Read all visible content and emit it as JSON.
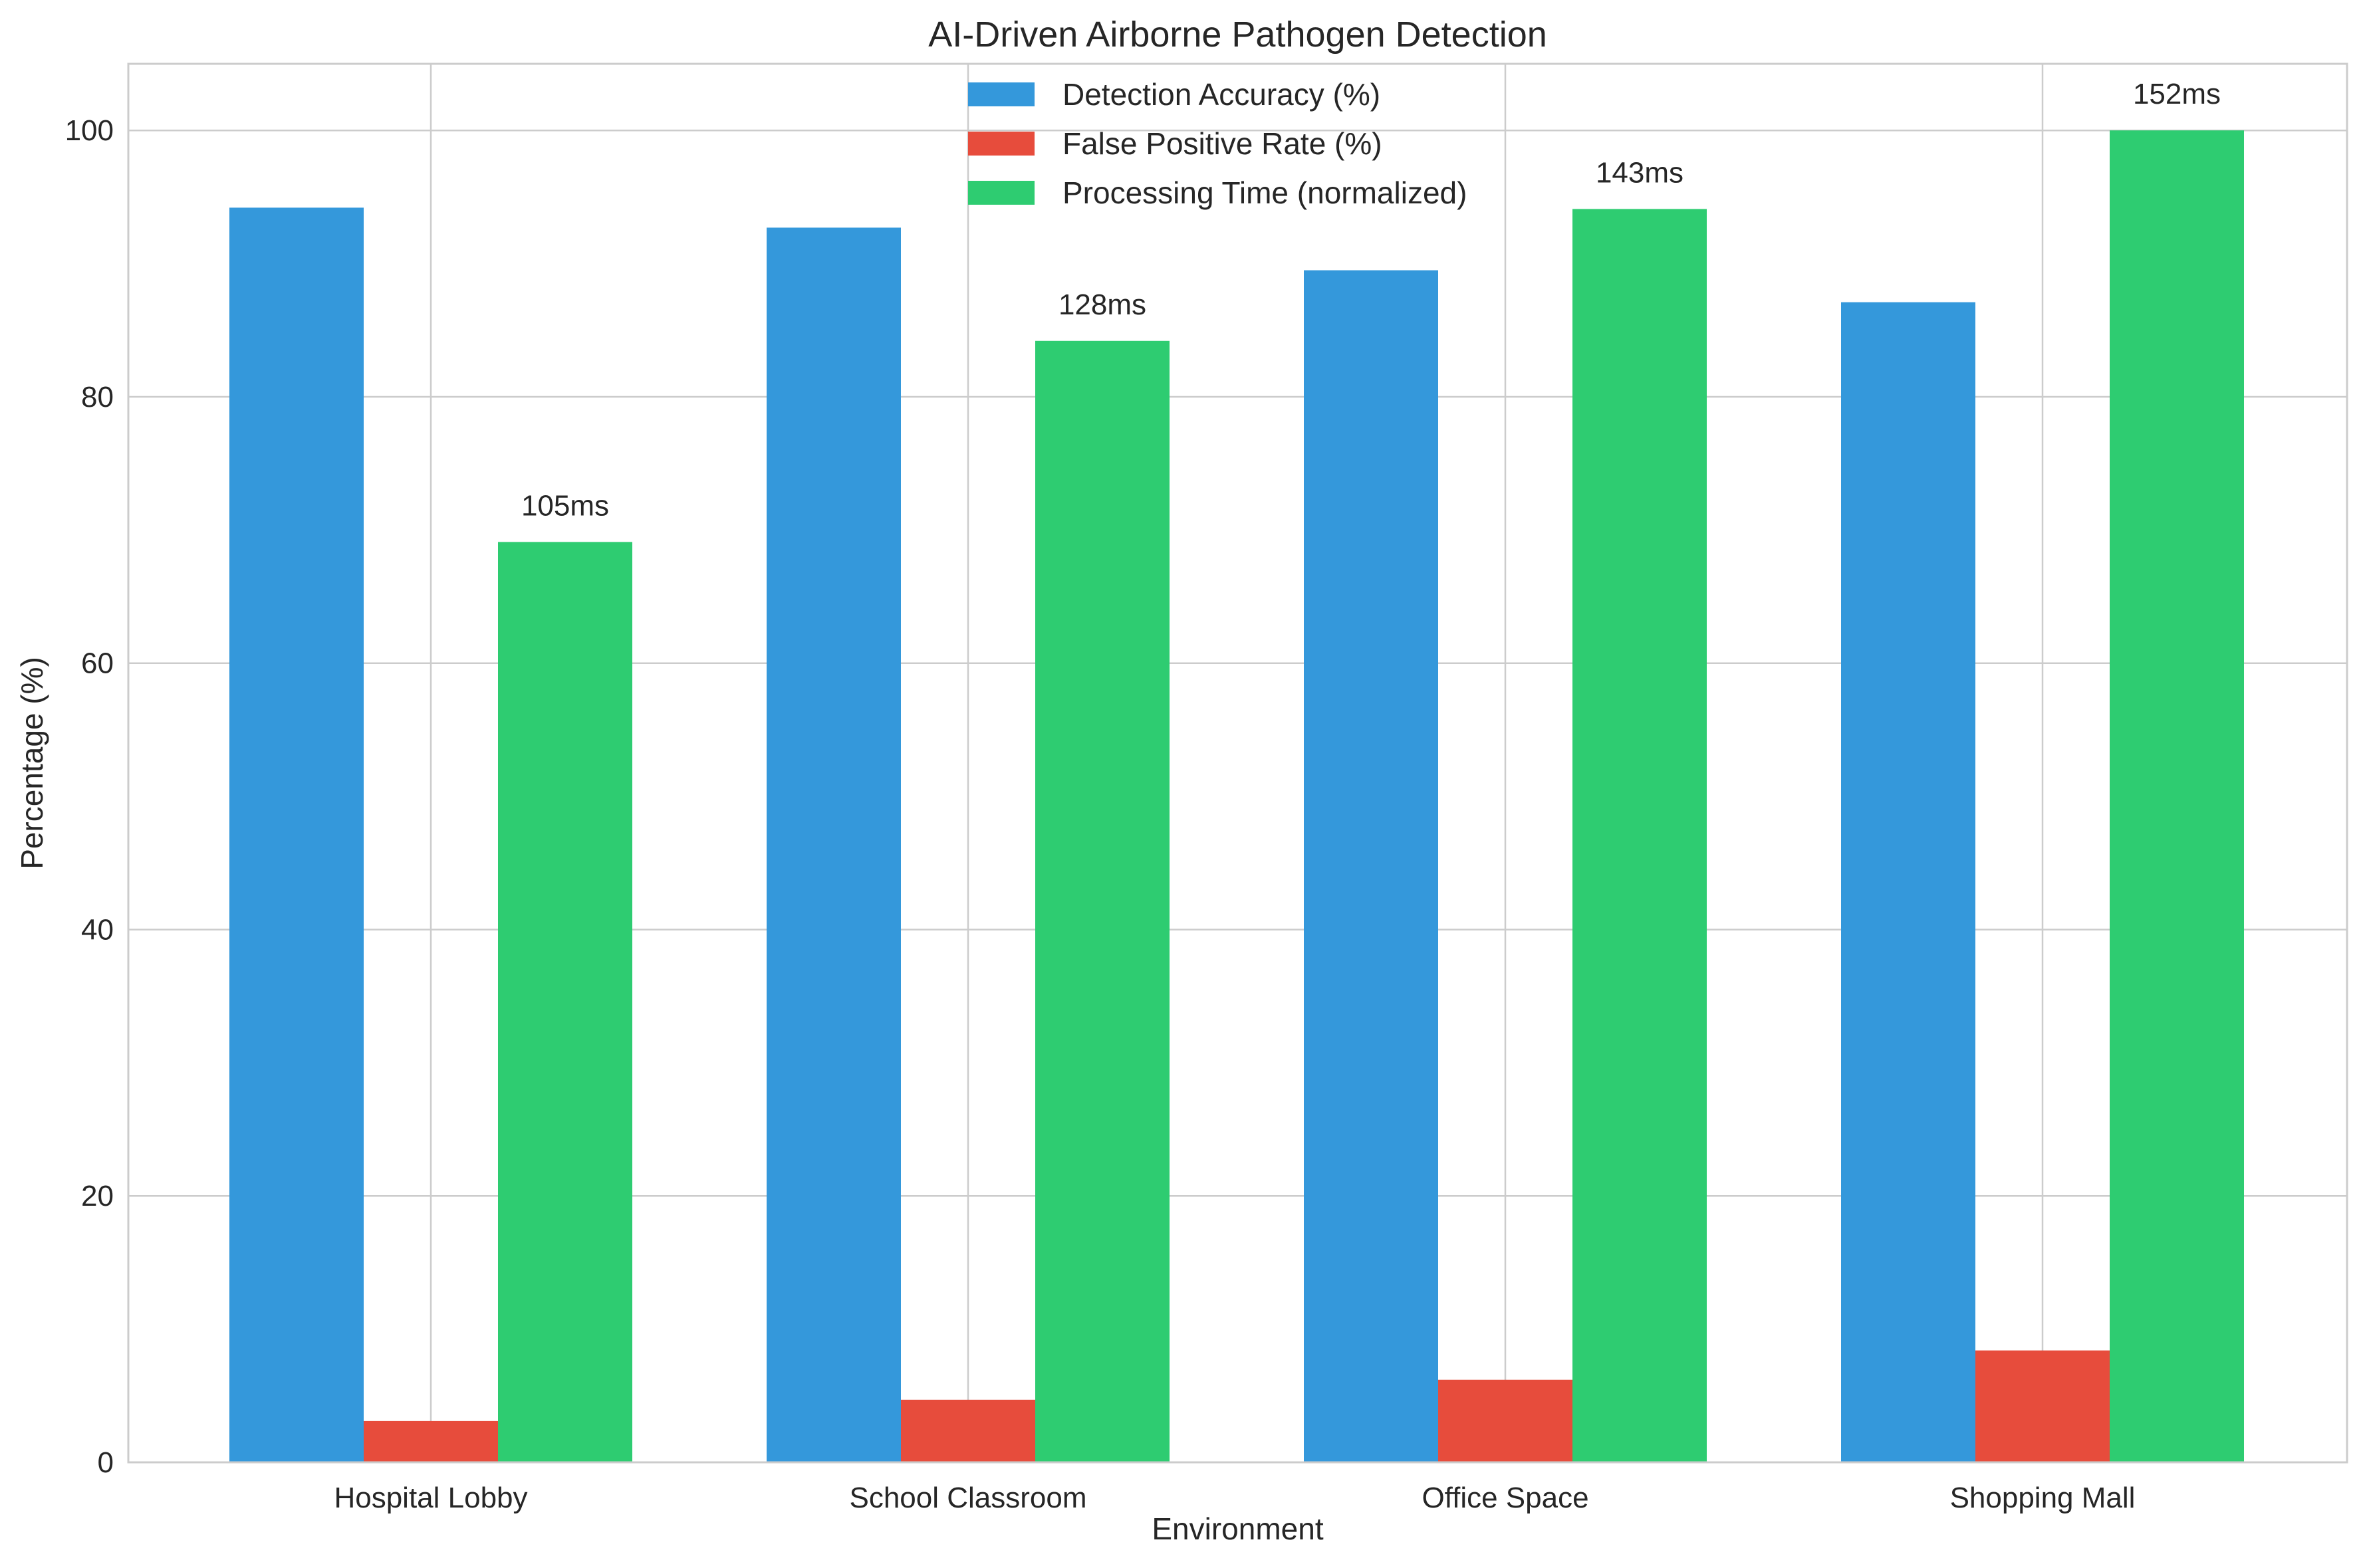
{
  "chart_data": {
    "type": "bar",
    "title": "AI-Driven Airborne Pathogen Detection",
    "xlabel": "Environment",
    "ylabel": "Percentage (%)",
    "ylim": [
      0,
      105
    ],
    "yticks": [
      0,
      20,
      40,
      60,
      80,
      100
    ],
    "grid": true,
    "legend_position": "top-center",
    "categories": [
      "Hospital Lobby",
      "School Classroom",
      "Office Space",
      "Shopping Mall"
    ],
    "series": [
      {
        "name": "Detection Accuracy (%)",
        "color": "#3498db",
        "values": [
          94.2,
          92.7,
          89.5,
          87.1
        ]
      },
      {
        "name": "False Positive Rate (%)",
        "color": "#e74c3c",
        "values": [
          3.1,
          4.7,
          6.2,
          8.4
        ]
      },
      {
        "name": "Processing Time (normalized)",
        "color": "#2ecc71",
        "values": [
          69.1,
          84.2,
          94.1,
          100.0
        ],
        "annotations": [
          "105ms",
          "128ms",
          "143ms",
          "152ms"
        ]
      }
    ]
  }
}
